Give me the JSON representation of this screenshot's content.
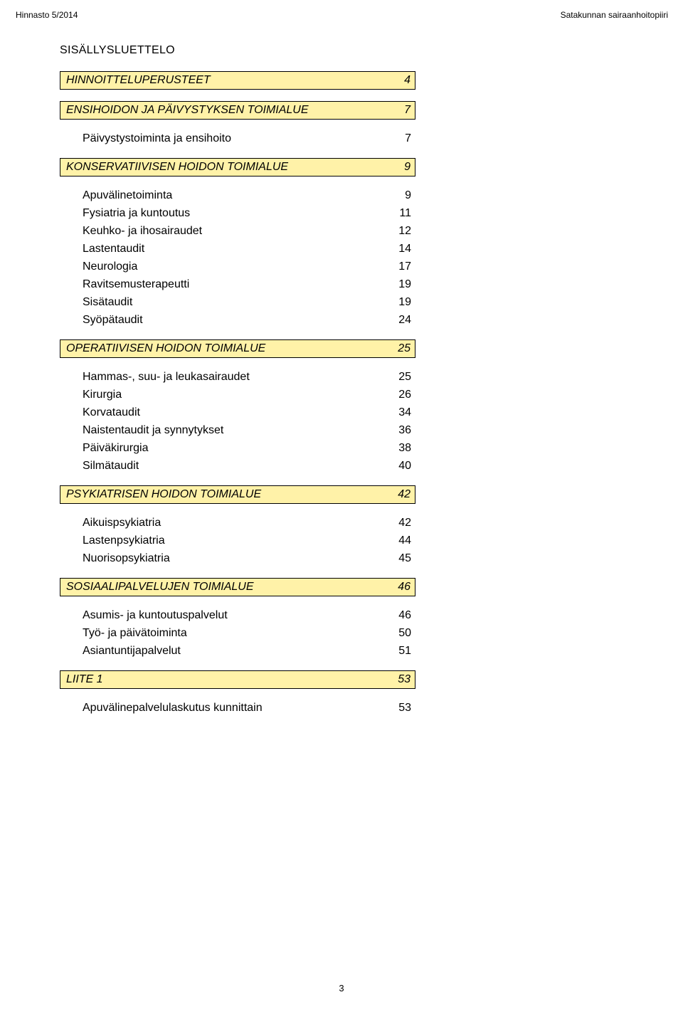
{
  "header": {
    "left": "Hinnasto 5/2014",
    "right": "Satakunnan sairaanhoitopiiri"
  },
  "title": "SISÄLLYSLUETTELO",
  "colors": {
    "highlight": "#fff2a8",
    "border": "#000000",
    "text": "#000000",
    "bg": "#ffffff"
  },
  "rows": [
    {
      "label": "HINNOITTELUPERUSTEET",
      "num": "4",
      "yellow": true,
      "gapAfter": true
    },
    {
      "label": "ENSIHOIDON JA PÄIVYSTYKSEN TOIMIALUE",
      "num": "7",
      "yellow": true,
      "gapAfter": true
    },
    {
      "label": "Päivystystoiminta ja ensihoito",
      "num": "7",
      "indent": true,
      "gapAfter": true
    },
    {
      "label": "KONSERVATIIVISEN HOIDON TOIMIALUE",
      "num": "9",
      "yellow": true,
      "gapAfter": true
    },
    {
      "label": "Apuvälinetoiminta",
      "num": "9",
      "indent": true
    },
    {
      "label": "Fysiatria ja kuntoutus",
      "num": "11",
      "indent": true
    },
    {
      "label": "Keuhko- ja ihosairaudet",
      "num": "12",
      "indent": true
    },
    {
      "label": "Lastentaudit",
      "num": "14",
      "indent": true
    },
    {
      "label": "Neurologia",
      "num": "17",
      "indent": true
    },
    {
      "label": "Ravitsemusterapeutti",
      "num": "19",
      "indent": true
    },
    {
      "label": "Sisätaudit",
      "num": "19",
      "indent": true
    },
    {
      "label": "Syöpätaudit",
      "num": "24",
      "indent": true,
      "gapAfter": true
    },
    {
      "label": "OPERATIIVISEN HOIDON TOIMIALUE",
      "num": "25",
      "yellow": true,
      "gapAfter": true
    },
    {
      "label": "Hammas-, suu- ja leukasairaudet",
      "num": "25",
      "indent": true
    },
    {
      "label": "Kirurgia",
      "num": "26",
      "indent": true
    },
    {
      "label": "Korvataudit",
      "num": "34",
      "indent": true
    },
    {
      "label": "Naistentaudit ja synnytykset",
      "num": "36",
      "indent": true
    },
    {
      "label": "Päiväkirurgia",
      "num": "38",
      "indent": true
    },
    {
      "label": "Silmätaudit",
      "num": "40",
      "indent": true,
      "gapAfter": true
    },
    {
      "label": "PSYKIATRISEN HOIDON TOIMIALUE",
      "num": "42",
      "yellow": true,
      "gapAfter": true
    },
    {
      "label": "Aikuispsykiatria",
      "num": "42",
      "indent": true
    },
    {
      "label": "Lastenpsykiatria",
      "num": "44",
      "indent": true
    },
    {
      "label": "Nuorisopsykiatria",
      "num": "45",
      "indent": true,
      "gapAfter": true
    },
    {
      "label": "SOSIAALIPALVELUJEN TOIMIALUE",
      "num": "46",
      "yellow": true,
      "gapAfter": true
    },
    {
      "label": "Asumis- ja kuntoutuspalvelut",
      "num": "46",
      "indent": true
    },
    {
      "label": "Työ- ja päivätoiminta",
      "num": "50",
      "indent": true
    },
    {
      "label": "Asiantuntijapalvelut",
      "num": "51",
      "indent": true,
      "gapAfter": true
    },
    {
      "label": "LIITE 1",
      "num": "53",
      "yellow": true,
      "gapAfter": true
    },
    {
      "label": "Apuvälinepalvelulaskutus kunnittain",
      "num": "53",
      "indent": true
    }
  ],
  "footer": "3"
}
